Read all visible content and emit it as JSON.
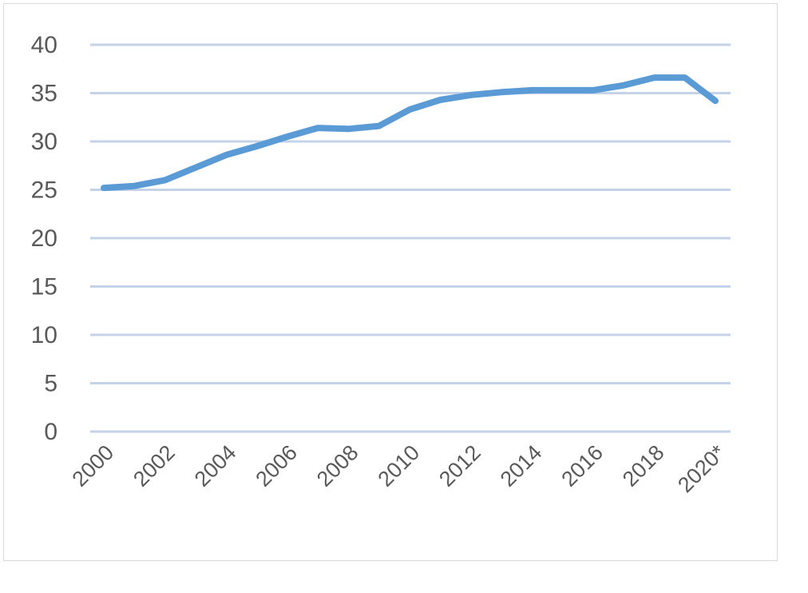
{
  "chart_data": {
    "type": "line",
    "title": "",
    "xlabel": "",
    "ylabel": "",
    "ylim": [
      0,
      40
    ],
    "yticks": [
      0,
      5,
      10,
      15,
      20,
      25,
      30,
      35,
      40
    ],
    "x_tick_labels": [
      "2000",
      "2002",
      "2004",
      "2006",
      "2008",
      "2010",
      "2012",
      "2014",
      "2016",
      "2018",
      "2020*"
    ],
    "grid": true,
    "legend": "none",
    "categories": [
      "2000",
      "2001",
      "2002",
      "2003",
      "2004",
      "2005",
      "2006",
      "2007",
      "2008",
      "2009",
      "2010",
      "2011",
      "2012",
      "2013",
      "2014",
      "2015",
      "2016",
      "2017",
      "2018",
      "2019",
      "2020*"
    ],
    "series": [
      {
        "color": "#5b9bd5",
        "values": [
          25.2,
          25.4,
          26.0,
          27.3,
          28.6,
          29.5,
          30.5,
          31.4,
          31.3,
          31.6,
          33.3,
          34.3,
          34.8,
          35.1,
          35.3,
          35.3,
          35.3,
          35.8,
          36.6,
          36.6,
          34.2
        ]
      }
    ],
    "gridline_color": "#c5d3e8",
    "tick_label_color": "#595959"
  }
}
